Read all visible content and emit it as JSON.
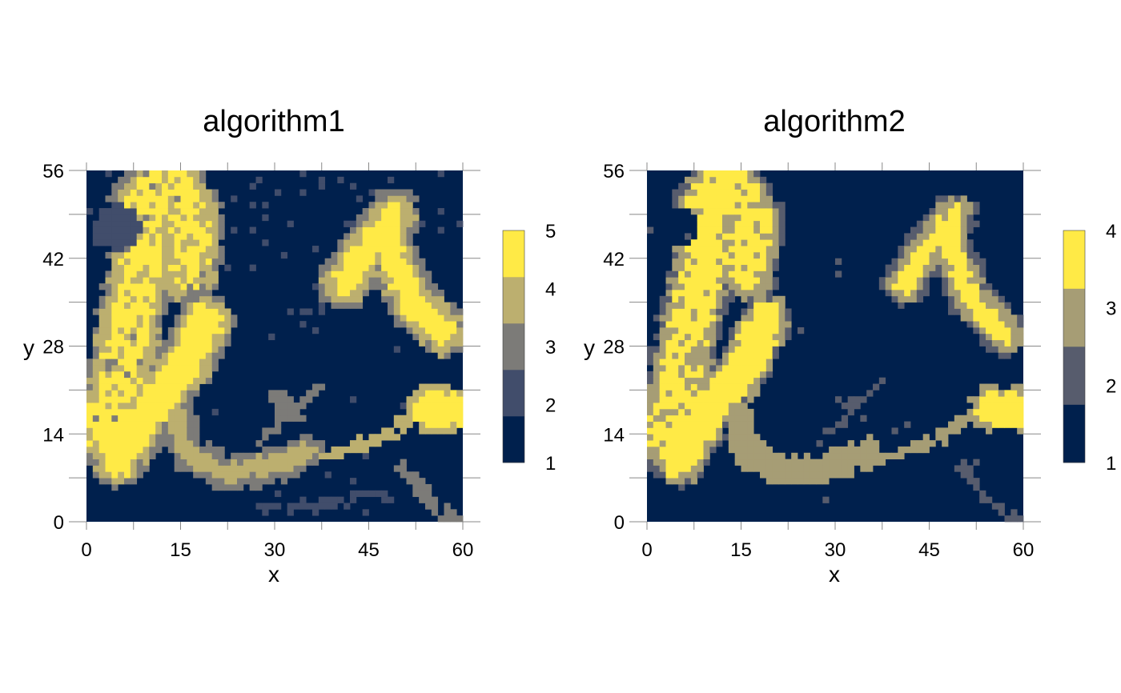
{
  "chart_data": [
    {
      "type": "heatmap",
      "title": "algorithm1",
      "xlabel": "x",
      "ylabel": "y",
      "xlim": [
        0,
        60
      ],
      "ylim": [
        0,
        56
      ],
      "x_ticks": [
        "0",
        "15",
        "30",
        "45",
        "60"
      ],
      "y_ticks": [
        "0",
        "14",
        "28",
        "42",
        "56"
      ],
      "legend": {
        "placement": "right",
        "labels": [
          "1",
          "2",
          "3",
          "4",
          "5"
        ],
        "colors": [
          "#00204d",
          "#414d6b",
          "#7c7b78",
          "#bcaf6f",
          "#ffea46"
        ]
      },
      "grid": "raster of integer classes 1-5 on a 60 x 56 cell grid",
      "regions": [
        {
          "name": "upper-left plume",
          "class_core": 5,
          "class_edge": 4
        },
        {
          "name": "upper-left pocket",
          "class": 2
        },
        {
          "name": "center-left arm",
          "class_core": 5,
          "class_edge": 4
        },
        {
          "name": "lower arc",
          "class_core": 4,
          "class_edge": 3
        },
        {
          "name": "upper-right hook",
          "class_core": 5,
          "class_edge": 3
        },
        {
          "name": "right diagonal band",
          "class_core": 4
        },
        {
          "name": "right blob",
          "class_core": 5,
          "class_edge": 4
        },
        {
          "name": "background",
          "class": 1
        }
      ]
    },
    {
      "type": "heatmap",
      "title": "algorithm2",
      "xlabel": "x",
      "ylabel": "y",
      "xlim": [
        0,
        60
      ],
      "ylim": [
        0,
        56
      ],
      "x_ticks": [
        "0",
        "15",
        "30",
        "45",
        "60"
      ],
      "y_ticks": [
        "0",
        "14",
        "28",
        "42",
        "56"
      ],
      "legend": {
        "placement": "right",
        "labels": [
          "1",
          "2",
          "3",
          "4"
        ],
        "colors": [
          "#00204d",
          "#575c6d",
          "#a69d75",
          "#ffea46"
        ]
      },
      "grid": "raster of integer classes 1-4 on a 60 x 56 cell grid",
      "regions": [
        {
          "name": "upper-left plume",
          "class_core": 4,
          "class_edge": 3
        },
        {
          "name": "upper-left pocket",
          "class": 1
        },
        {
          "name": "center-left arm",
          "class_core": 4,
          "class_edge": 3
        },
        {
          "name": "lower arc",
          "class_core": 3
        },
        {
          "name": "upper-right hook",
          "class_core": 4,
          "class_edge": 3
        },
        {
          "name": "right diagonal band",
          "class_core": 3
        },
        {
          "name": "right blob",
          "class_core": 4,
          "class_edge": 3
        },
        {
          "name": "background",
          "class": 1
        }
      ]
    }
  ]
}
